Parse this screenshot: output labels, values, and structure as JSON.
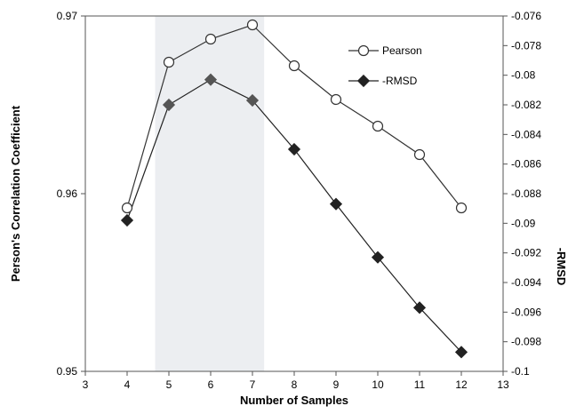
{
  "chart_data": {
    "type": "line",
    "x": [
      4,
      5,
      6,
      7,
      8,
      9,
      10,
      11,
      12
    ],
    "xlabel": "Number of Samples",
    "ylabel": "Person's Correlation Coefficient",
    "y2label": "-RMSD",
    "xlim": [
      3,
      13
    ],
    "ylim": [
      0.95,
      0.97
    ],
    "y2lim": [
      -0.1,
      -0.076
    ],
    "x_ticks": [
      "3",
      "4",
      "5",
      "6",
      "7",
      "8",
      "9",
      "10",
      "11",
      "12",
      "13"
    ],
    "y_ticks": [
      "0.95",
      "0.96",
      "0.97"
    ],
    "y2_ticks": [
      "-0.1",
      "-0.098",
      "-0.096",
      "-0.094",
      "-0.092",
      "-0.09",
      "-0.088",
      "-0.086",
      "-0.084",
      "-0.082",
      "-0.08",
      "-0.078",
      "-0.076"
    ],
    "highlight_region": [
      4.67,
      7.28
    ],
    "grid": false,
    "legend": "top-right",
    "series": [
      {
        "name": "Pearson",
        "axis": "left",
        "marker": "open-circle",
        "color": "#333333",
        "values": [
          0.9592,
          0.9674,
          0.9687,
          0.9695,
          0.9672,
          0.9653,
          0.9638,
          0.9622,
          0.9592
        ]
      },
      {
        "name": "-RMSD",
        "axis": "right",
        "marker": "filled-diamond",
        "color": "#222222",
        "values": [
          -0.0898,
          -0.082,
          -0.0803,
          -0.0817,
          -0.085,
          -0.0887,
          -0.0923,
          -0.0957,
          -0.0987
        ]
      }
    ]
  }
}
